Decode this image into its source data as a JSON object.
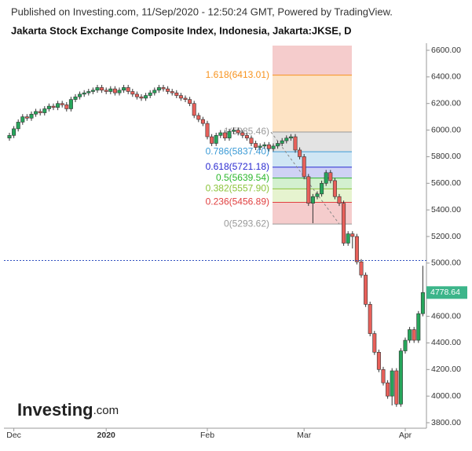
{
  "header": {
    "published": "Published on Investing.com, 11/Sep/2020 - 12:50:24 GMT, Powered by TradingView.",
    "logo": [
      "Investing",
      ".com"
    ]
  },
  "chart_data": {
    "type": "candlestick",
    "title": "Jakarta Stock Exchange Composite Index, Indonesia, Jakarta:JKSE, D",
    "categories": [
      null,
      "Dec",
      null,
      null,
      null,
      null,
      null,
      null,
      null,
      null,
      null,
      null,
      null,
      null,
      null,
      null,
      null,
      null,
      null,
      null,
      null,
      null,
      "2020",
      null,
      null,
      null,
      null,
      null,
      null,
      null,
      null,
      null,
      null,
      null,
      null,
      null,
      null,
      null,
      null,
      null,
      null,
      null,
      null,
      null,
      null,
      "Feb",
      null,
      null,
      null,
      null,
      null,
      null,
      null,
      null,
      null,
      null,
      null,
      null,
      null,
      null,
      null,
      null,
      null,
      null,
      null,
      null,
      null,
      "Mar",
      null,
      null,
      null,
      null,
      null,
      null,
      null,
      null,
      null,
      null,
      null,
      null,
      null,
      null,
      null,
      null,
      null,
      null,
      null,
      null,
      null,
      null,
      "Apr",
      null,
      null,
      null,
      null
    ],
    "open": [
      5940,
      5960,
      6010,
      6060,
      6100,
      6090,
      6120,
      6140,
      6130,
      6160,
      6180,
      6170,
      6200,
      6190,
      6160,
      6230,
      6250,
      6270,
      6280,
      6290,
      6300,
      6320,
      6300,
      6290,
      6310,
      6280,
      6300,
      6320,
      6290,
      6270,
      6250,
      6240,
      6260,
      6280,
      6300,
      6320,
      6310,
      6290,
      6280,
      6260,
      6240,
      6230,
      6200,
      6110,
      6080,
      6050,
      5950,
      5900,
      5960,
      5980,
      5940,
      5990,
      6000,
      5980,
      5960,
      5940,
      5900,
      5870,
      5880,
      5890,
      5860,
      5880,
      5900,
      5920,
      5940,
      5950,
      5850,
      5800,
      5650,
      5450,
      5500,
      5520,
      5600,
      5680,
      5620,
      5500,
      5450,
      5150,
      5220,
      5200,
      5010,
      4910,
      4690,
      4470,
      4330,
      4200,
      4100,
      4000,
      4190,
      3940,
      4340,
      4420,
      4500,
      4420,
      4620
    ],
    "high": [
      5980,
      6030,
      6080,
      6120,
      6120,
      6140,
      6160,
      6160,
      6180,
      6200,
      6200,
      6220,
      6220,
      6210,
      6250,
      6270,
      6290,
      6300,
      6310,
      6320,
      6340,
      6340,
      6320,
      6330,
      6330,
      6320,
      6340,
      6340,
      6310,
      6290,
      6270,
      6280,
      6300,
      6320,
      6340,
      6340,
      6330,
      6310,
      6300,
      6280,
      6260,
      6250,
      6220,
      6130,
      6100,
      6070,
      5970,
      5980,
      6000,
      6000,
      6010,
      6020,
      6020,
      6000,
      5980,
      5960,
      5920,
      5900,
      5910,
      5910,
      5900,
      5920,
      5940,
      5960,
      5970,
      5970,
      5870,
      5820,
      5670,
      5520,
      5540,
      5620,
      5700,
      5700,
      5640,
      5520,
      5470,
      5240,
      5240,
      5220,
      5030,
      4930,
      4710,
      4490,
      4350,
      4220,
      4120,
      4210,
      4210,
      4360,
      4440,
      4520,
      4520,
      4640,
      4980
    ],
    "low": [
      5920,
      5940,
      5990,
      6040,
      6070,
      6070,
      6100,
      6110,
      6110,
      6140,
      6150,
      6150,
      6170,
      6140,
      6140,
      6210,
      6230,
      6250,
      6260,
      6270,
      6280,
      6280,
      6270,
      6270,
      6260,
      6260,
      6280,
      6270,
      6250,
      6230,
      6220,
      6220,
      6240,
      6260,
      6280,
      6290,
      6270,
      6260,
      6240,
      6220,
      6210,
      6180,
      6090,
      6060,
      6030,
      5930,
      5880,
      5880,
      5940,
      5920,
      5920,
      5970,
      5960,
      5940,
      5920,
      5880,
      5850,
      5850,
      5860,
      5840,
      5840,
      5860,
      5880,
      5900,
      5920,
      5830,
      5780,
      5630,
      5430,
      5300,
      5480,
      5500,
      5580,
      5600,
      5480,
      5430,
      5130,
      5130,
      5110,
      4990,
      4890,
      4670,
      4450,
      4310,
      4180,
      4080,
      3980,
      3930,
      3920,
      3920,
      4320,
      4400,
      4400,
      4400,
      4600
    ],
    "close": [
      5960,
      6010,
      6060,
      6100,
      6090,
      6120,
      6140,
      6130,
      6160,
      6180,
      6170,
      6200,
      6190,
      6160,
      6230,
      6250,
      6270,
      6280,
      6290,
      6300,
      6320,
      6300,
      6290,
      6310,
      6280,
      6300,
      6320,
      6290,
      6270,
      6250,
      6240,
      6260,
      6280,
      6300,
      6320,
      6310,
      6290,
      6280,
      6260,
      6240,
      6230,
      6200,
      6110,
      6080,
      6050,
      5950,
      5900,
      5960,
      5980,
      5940,
      5990,
      6000,
      5980,
      5960,
      5940,
      5900,
      5870,
      5880,
      5890,
      5860,
      5880,
      5900,
      5920,
      5940,
      5950,
      5850,
      5800,
      5650,
      5450,
      5500,
      5520,
      5600,
      5680,
      5620,
      5500,
      5450,
      5150,
      5220,
      5200,
      5010,
      4910,
      4690,
      4470,
      4330,
      4200,
      4100,
      4000,
      4190,
      3940,
      4340,
      4420,
      4500,
      4420,
      4620,
      4778.64
    ],
    "up_color": "#26a65b",
    "down_color": "#e8605a",
    "last_price": {
      "value": 4778.64,
      "label": "4778.64",
      "color": "#3cb58a"
    },
    "price_line": 5020,
    "fib_top_color": "#f5cccc",
    "fib_levels": [
      {
        "label": "1.618(6413.01)",
        "value": 6413.01,
        "color": "#f7931e",
        "band": "#fde3c4"
      },
      {
        "label": "1(5985.46)",
        "value": 5985.46,
        "color": "#999999",
        "band": "#e3e3e3"
      },
      {
        "label": "0.786(5837.40)",
        "value": 5837.4,
        "color": "#3c9bd6",
        "band": "#cfe6f4"
      },
      {
        "label": "0.618(5721.18)",
        "value": 5721.18,
        "color": "#2a2ad0",
        "band": "#cfd2f5"
      },
      {
        "label": "0.5(5639.54)",
        "value": 5639.54,
        "color": "#2eb82e",
        "band": "#d3f0cf"
      },
      {
        "label": "0.382(5557.90)",
        "value": 5557.9,
        "color": "#8cc43c",
        "band": "#e6f3cf"
      },
      {
        "label": "0.236(5456.89)",
        "value": 5456.89,
        "color": "#e04040",
        "band": "#f5cccc"
      },
      {
        "label": "0(5293.62)",
        "value": 5293.62,
        "color": "#999999"
      }
    ],
    "ylim": [
      3800,
      6600
    ],
    "yticks": [
      {
        "value": 3800,
        "label": "3800.00"
      },
      {
        "value": 4000,
        "label": "4000.00"
      },
      {
        "value": 4200,
        "label": "4200.00"
      },
      {
        "value": 4400,
        "label": "4400.00"
      },
      {
        "value": 4600,
        "label": "4600.00"
      },
      {
        "value": 4800,
        "label": "4800.00"
      },
      {
        "value": 5000,
        "label": "5000.00"
      },
      {
        "value": 5200,
        "label": "5200.00"
      },
      {
        "value": 5400,
        "label": "5400.00"
      },
      {
        "value": 5600,
        "label": "5600.00"
      },
      {
        "value": 5800,
        "label": "5800.00"
      },
      {
        "value": 6000,
        "label": "6000.00"
      },
      {
        "value": 6200,
        "label": "6200.00"
      },
      {
        "value": 6400,
        "label": "6400.00"
      },
      {
        "value": 6600,
        "label": "6600.00"
      }
    ]
  }
}
